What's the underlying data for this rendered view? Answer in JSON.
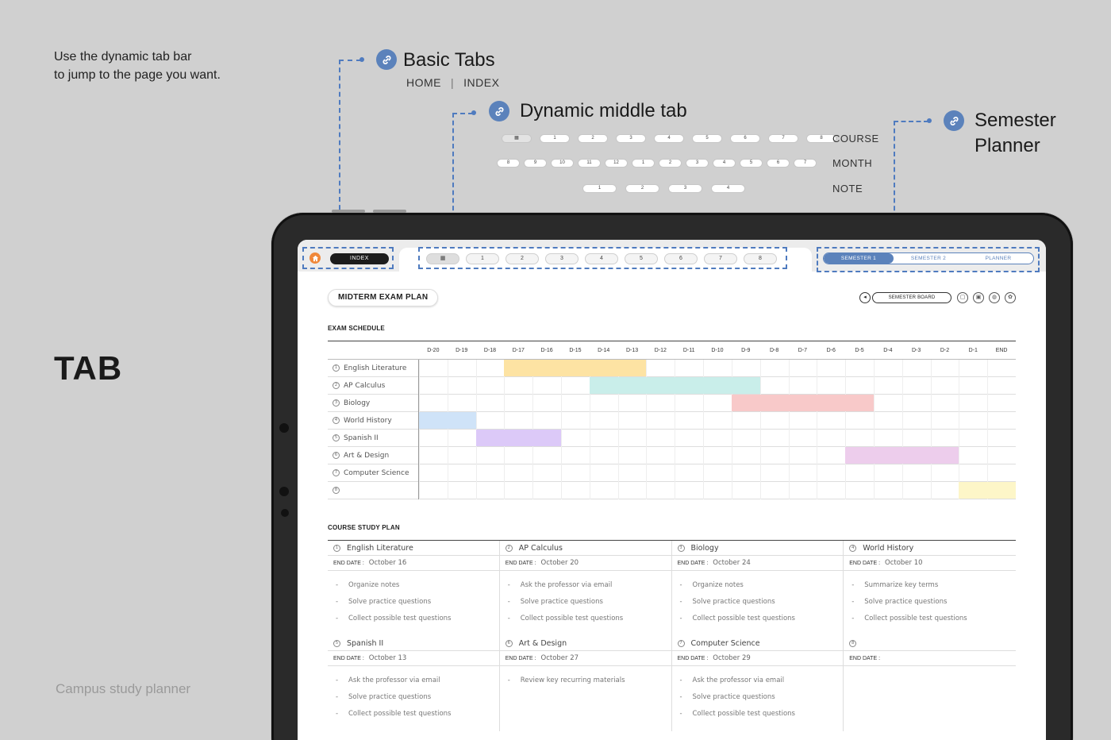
{
  "intro": {
    "line1": "Use the dynamic tab bar",
    "line2": "to jump to the page you want."
  },
  "big_label": "TAB",
  "footer_label": "Campus study planner",
  "callouts": {
    "basic": {
      "title": "Basic Tabs",
      "link1": "HOME",
      "link2": "INDEX",
      "sep": "|"
    },
    "middle": {
      "title": "Dynamic middle tab"
    },
    "semester": {
      "title_line1": "Semester",
      "title_line2": "Planner"
    }
  },
  "pill_rows": {
    "course": {
      "label": "COURSE",
      "items": [
        "▦",
        "1",
        "2",
        "3",
        "4",
        "5",
        "6",
        "7",
        "8"
      ]
    },
    "month": {
      "label": "MONTH",
      "items": [
        "8",
        "9",
        "10",
        "11",
        "12",
        "1",
        "2",
        "3",
        "4",
        "5",
        "6",
        "7"
      ]
    },
    "note": {
      "label": "NOTE",
      "items": [
        "1",
        "2",
        "3",
        "4"
      ]
    }
  },
  "tabbar": {
    "index_label": "INDEX",
    "num_tabs": [
      "▦",
      "1",
      "2",
      "3",
      "4",
      "5",
      "6",
      "7",
      "8"
    ],
    "semester_tabs": [
      "SEMESTER 1",
      "SEMESTER 2",
      "PLANNER"
    ],
    "active_semester": 0
  },
  "page": {
    "title": "MIDTERM EXAM PLAN",
    "board_label": "SEMESTER BOARD",
    "back_icon": "back-arrow-icon",
    "right_icons": [
      "calendar-icon",
      "notebook-icon",
      "globe-icon",
      "settings-icon"
    ],
    "right_glyphs": [
      "▢",
      "▣",
      "◍",
      "✿"
    ]
  },
  "schedule": {
    "title": "EXAM SCHEDULE",
    "days": [
      "D-20",
      "D-19",
      "D-18",
      "D-17",
      "D-16",
      "D-15",
      "D-14",
      "D-13",
      "D-12",
      "D-11",
      "D-10",
      "D-9",
      "D-8",
      "D-7",
      "D-6",
      "D-5",
      "D-4",
      "D-3",
      "D-2",
      "D-1",
      "END"
    ],
    "rows": [
      {
        "num": "1",
        "name": "English Literature",
        "start": 3,
        "end": 8,
        "color": "#fde3a3"
      },
      {
        "num": "2",
        "name": "AP Calculus",
        "start": 6,
        "end": 12,
        "color": "#c9eeea"
      },
      {
        "num": "3",
        "name": "Biology",
        "start": 11,
        "end": 16,
        "color": "#f8c9c9"
      },
      {
        "num": "4",
        "name": "World History",
        "start": 0,
        "end": 2,
        "color": "#cfe3f8"
      },
      {
        "num": "5",
        "name": "Spanish II",
        "start": 2,
        "end": 5,
        "color": "#dcc9f8"
      },
      {
        "num": "6",
        "name": "Art & Design",
        "start": 15,
        "end": 19,
        "color": "#edcdec"
      },
      {
        "num": "7",
        "name": "Computer Science",
        "start": null,
        "end": null,
        "color": ""
      },
      {
        "num": "8",
        "name": "",
        "start": 19,
        "end": 21,
        "color": "#fdf6c8"
      }
    ]
  },
  "study": {
    "title": "COURSE STUDY PLAN",
    "end_label": "END DATE :",
    "cards": [
      {
        "num": "1",
        "name": "English Literature",
        "date": "October 16",
        "tasks": [
          "Organize notes",
          "Solve practice questions",
          "Collect possible test questions"
        ]
      },
      {
        "num": "2",
        "name": "AP Calculus",
        "date": "October 20",
        "tasks": [
          "Ask the professor via email",
          "Solve practice questions",
          "Collect possible test questions"
        ]
      },
      {
        "num": "3",
        "name": "Biology",
        "date": "October 24",
        "tasks": [
          "Organize notes",
          "Solve practice questions",
          "Collect possible test questions"
        ]
      },
      {
        "num": "4",
        "name": "World History",
        "date": "October 10",
        "tasks": [
          "Summarize key terms",
          "Solve practice questions",
          "Collect possible test questions"
        ]
      },
      {
        "num": "5",
        "name": "Spanish II",
        "date": "October 13",
        "tasks": [
          "Ask the professor via email",
          "Solve practice questions",
          "Collect possible test questions"
        ]
      },
      {
        "num": "6",
        "name": "Art & Design",
        "date": "October 27",
        "tasks": [
          "Review key recurring materials"
        ]
      },
      {
        "num": "7",
        "name": "Computer Science",
        "date": "October 29",
        "tasks": [
          "Ask the professor via email",
          "Solve practice questions",
          "Collect possible test questions"
        ]
      },
      {
        "num": "8",
        "name": "",
        "date": "",
        "tasks": []
      }
    ]
  }
}
